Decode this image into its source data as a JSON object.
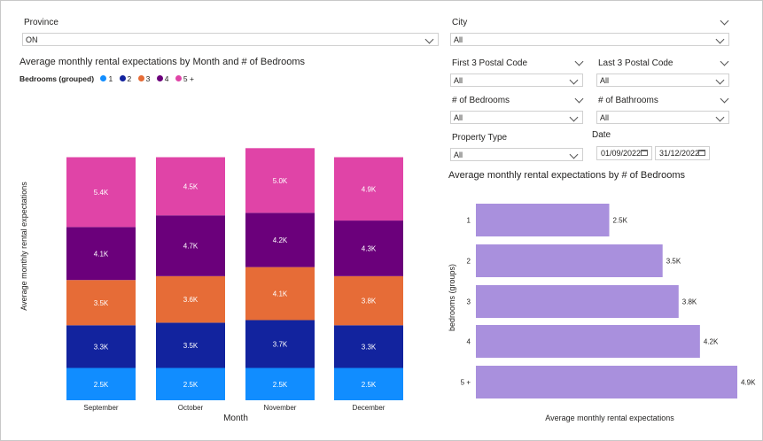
{
  "filters": {
    "province": {
      "label": "Province",
      "value": "ON"
    },
    "city": {
      "label": "City",
      "value": "All"
    },
    "first3": {
      "label": "First 3 Postal Code",
      "value": "All"
    },
    "last3": {
      "label": "Last 3 Postal Code",
      "value": "All"
    },
    "bedrooms": {
      "label": "# of Bedrooms",
      "value": "All"
    },
    "bathrooms": {
      "label": "# of Bathrooms",
      "value": "All"
    },
    "property": {
      "label": "Property Type",
      "value": "All"
    },
    "date": {
      "label": "Date",
      "start": "01/09/2022",
      "end": "31/12/2022"
    }
  },
  "legend": {
    "title": "Bedrooms (grouped)",
    "items": [
      {
        "label": "1",
        "color": "#118DFF"
      },
      {
        "label": "2",
        "color": "#12239E"
      },
      {
        "label": "3",
        "color": "#E66C37"
      },
      {
        "label": "4",
        "color": "#6B007B"
      },
      {
        "label": "5 +",
        "color": "#E044A7"
      }
    ]
  },
  "chart_data": [
    {
      "type": "bar",
      "stacked": true,
      "title": "Average monthly rental expectations by Month and # of Bedrooms",
      "xlabel": "Month",
      "ylabel": "Average monthly rental expectations",
      "categories": [
        "September",
        "October",
        "November",
        "December"
      ],
      "series": [
        {
          "name": "1",
          "color": "#118DFF",
          "values": [
            2.5,
            2.5,
            2.5,
            2.5
          ],
          "labels": [
            "2.5K",
            "2.5K",
            "2.5K",
            "2.5K"
          ]
        },
        {
          "name": "2",
          "color": "#12239E",
          "values": [
            3.3,
            3.5,
            3.7,
            3.3
          ],
          "labels": [
            "3.3K",
            "3.5K",
            "3.7K",
            "3.3K"
          ]
        },
        {
          "name": "3",
          "color": "#E66C37",
          "values": [
            3.5,
            3.6,
            4.1,
            3.8
          ],
          "labels": [
            "3.5K",
            "3.6K",
            "4.1K",
            "3.8K"
          ]
        },
        {
          "name": "4",
          "color": "#6B007B",
          "values": [
            4.1,
            4.7,
            4.2,
            4.3
          ],
          "labels": [
            "4.1K",
            "4.7K",
            "4.2K",
            "4.3K"
          ]
        },
        {
          "name": "5 +",
          "color": "#E044A7",
          "values": [
            5.4,
            4.5,
            5.0,
            4.9
          ],
          "labels": [
            "5.4K",
            "4.5K",
            "5.0K",
            "4.9K"
          ]
        }
      ]
    },
    {
      "type": "bar",
      "orientation": "horizontal",
      "title": "Average monthly rental expectations by # of Bedrooms",
      "xlabel": "Average monthly rental expectations",
      "ylabel": "bedrooms (groups)",
      "categories": [
        "1",
        "2",
        "3",
        "4",
        "5 +"
      ],
      "values": [
        2.5,
        3.5,
        3.8,
        4.2,
        4.9
      ],
      "labels": [
        "2.5K",
        "3.5K",
        "3.8K",
        "4.2K",
        "4.9K"
      ],
      "color": "#A990DD",
      "xlim": [
        0,
        4.9
      ]
    }
  ]
}
